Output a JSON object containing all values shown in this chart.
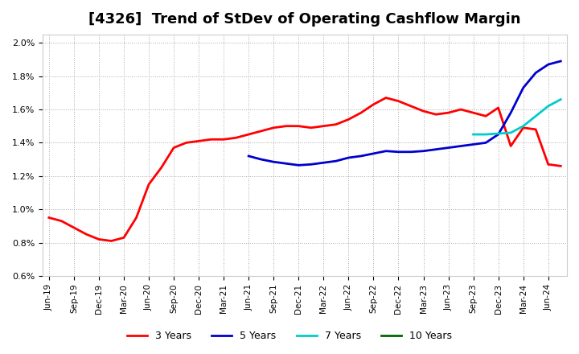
{
  "title": "[4326]  Trend of StDev of Operating Cashflow Margin",
  "title_fontsize": 13,
  "background_color": "#ffffff",
  "plot_bg_color": "#ffffff",
  "grid_color": "#aaaaaa",
  "ylim": [
    0.006,
    0.0205
  ],
  "yticks": [
    0.006,
    0.008,
    0.01,
    0.012,
    0.014,
    0.016,
    0.018,
    0.02
  ],
  "series": {
    "3 Years": {
      "color": "#ff0000",
      "linewidth": 2.0,
      "x": [
        0,
        1,
        2,
        3,
        4,
        5,
        6,
        7,
        8,
        9,
        10,
        11,
        12,
        13,
        14,
        15,
        16,
        17,
        18,
        19,
        20,
        21,
        22,
        23,
        24,
        25,
        26,
        27,
        28,
        29,
        30,
        31,
        32,
        33,
        34,
        35,
        36,
        37,
        38,
        39,
        40,
        41
      ],
      "y": [
        0.0095,
        0.0093,
        0.0089,
        0.0085,
        0.0082,
        0.0081,
        0.0083,
        0.0095,
        0.0115,
        0.0125,
        0.0137,
        0.014,
        0.0141,
        0.0142,
        0.0142,
        0.0143,
        0.0145,
        0.0147,
        0.0149,
        0.015,
        0.015,
        0.0149,
        0.015,
        0.0151,
        0.0154,
        0.0158,
        0.0163,
        0.0167,
        0.0165,
        0.0162,
        0.0159,
        0.0157,
        0.0158,
        0.016,
        0.0158,
        0.0156,
        0.0161,
        0.0138,
        0.0149,
        0.0148,
        0.0127,
        0.0126
      ]
    },
    "5 Years": {
      "color": "#0000cc",
      "linewidth": 2.0,
      "x": [
        16,
        17,
        18,
        19,
        20,
        21,
        22,
        23,
        24,
        25,
        26,
        27,
        28,
        29,
        30,
        31,
        32,
        33,
        34,
        35,
        36,
        37,
        38,
        39,
        40,
        41
      ],
      "y": [
        0.0132,
        0.013,
        0.01285,
        0.01275,
        0.01265,
        0.0127,
        0.0128,
        0.0129,
        0.0131,
        0.0132,
        0.01335,
        0.0135,
        0.01345,
        0.01345,
        0.0135,
        0.0136,
        0.0137,
        0.0138,
        0.0139,
        0.014,
        0.0145,
        0.0158,
        0.0173,
        0.0182,
        0.0187,
        0.0189
      ]
    },
    "7 Years": {
      "color": "#00cccc",
      "linewidth": 2.0,
      "x": [
        34,
        35,
        36,
        37,
        38,
        39,
        40,
        41
      ],
      "y": [
        0.0145,
        0.0145,
        0.01455,
        0.0146,
        0.015,
        0.0156,
        0.0162,
        0.0166
      ]
    },
    "10 Years": {
      "color": "#006600",
      "linewidth": 2.0,
      "x": [],
      "y": []
    }
  },
  "xtick_positions": [
    0,
    2,
    4,
    6,
    8,
    10,
    12,
    14,
    16,
    18,
    20,
    22,
    24,
    26,
    28,
    30,
    32,
    34,
    36,
    38,
    40
  ],
  "xtick_labels": [
    "Jun-19",
    "Sep-19",
    "Dec-19",
    "Mar-20",
    "Jun-20",
    "Sep-20",
    "Dec-20",
    "Mar-21",
    "Jun-21",
    "Sep-21",
    "Dec-21",
    "Mar-22",
    "Jun-22",
    "Sep-22",
    "Dec-22",
    "Mar-23",
    "Jun-23",
    "Sep-23",
    "Dec-23",
    "Mar-24",
    "Jun-24"
  ],
  "legend_ncol": 4
}
